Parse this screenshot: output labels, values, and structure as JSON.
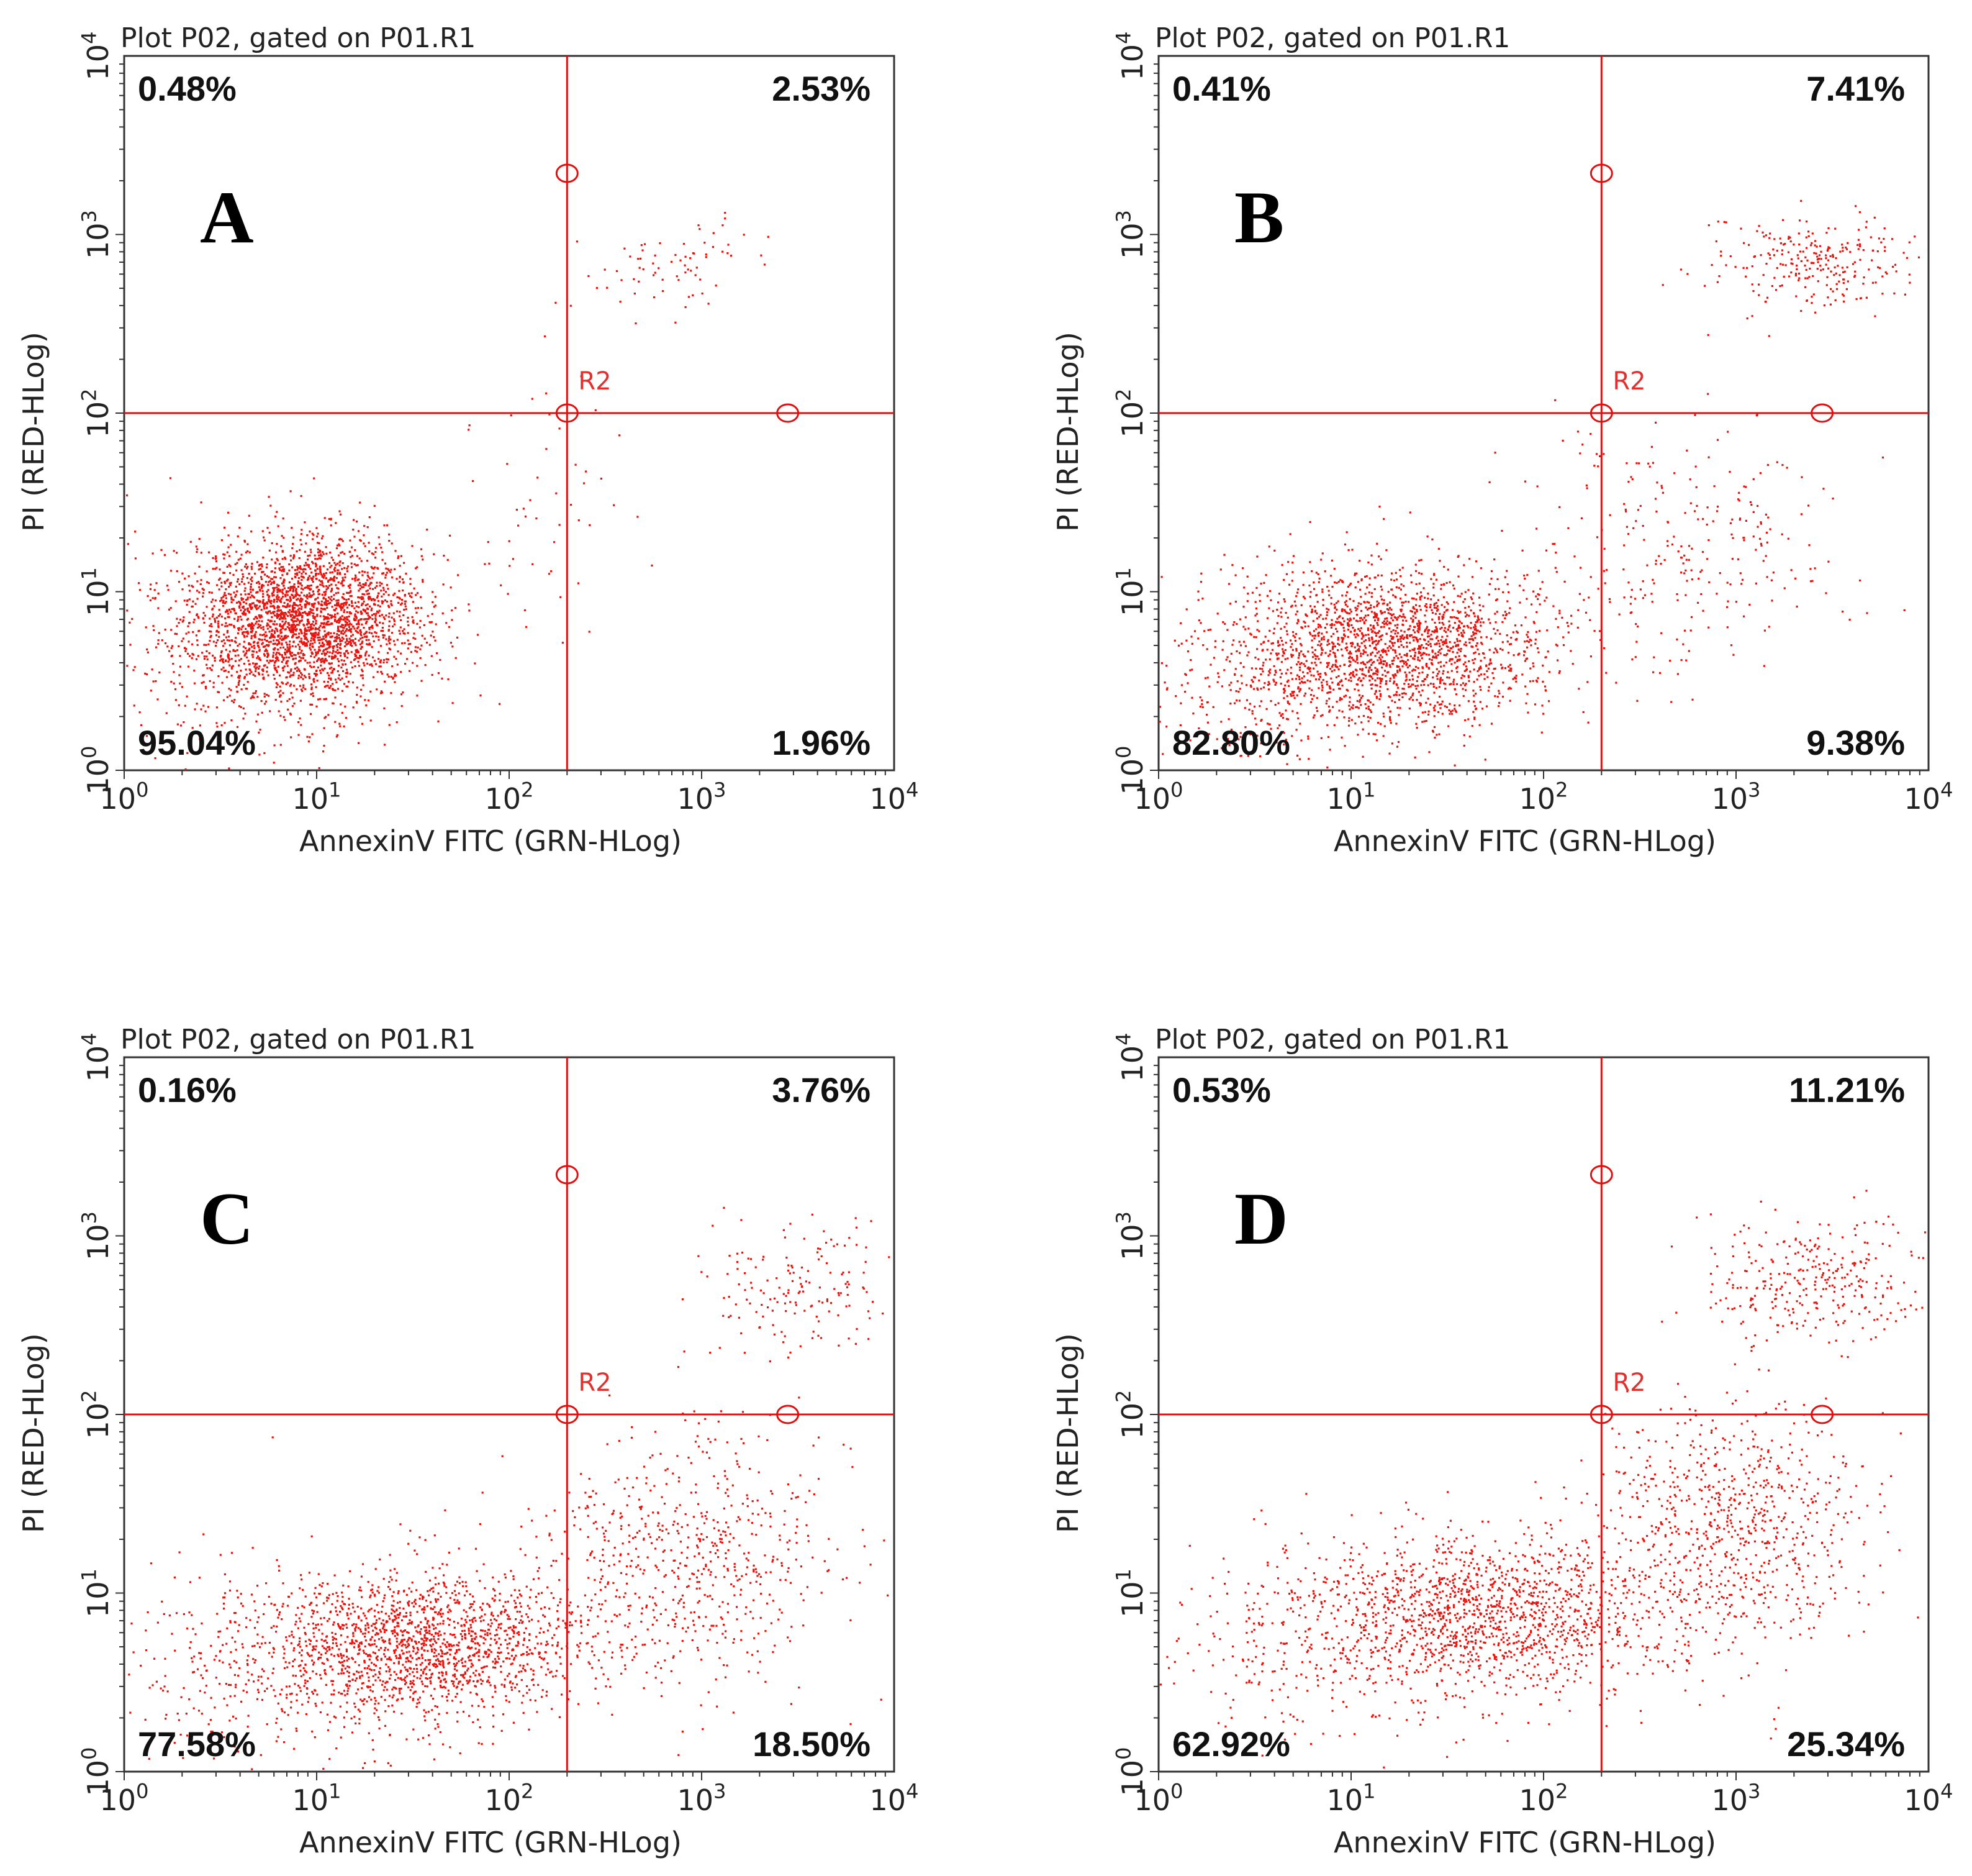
{
  "figure": {
    "colors": {
      "dots": "#e8140f",
      "gate": "#e01010",
      "frame": "#333333",
      "text": "#111111"
    }
  },
  "chart_data": [
    {
      "type": "scatter",
      "panel_letter": "A",
      "title": "Plot P02, gated on P01.R1",
      "xlabel": "AnnexinV FITC (GRN-HLog)",
      "ylabel": "PI (RED-HLog)",
      "xscale": "log",
      "yscale": "log",
      "xlim": [
        1,
        10000
      ],
      "ylim": [
        1,
        10000
      ],
      "x_ticks": [
        "10^0",
        "10^1",
        "10^2",
        "10^3",
        "10^4"
      ],
      "y_ticks": [
        "10^0",
        "10^1",
        "10^2",
        "10^3",
        "10^4"
      ],
      "gate": {
        "name": "R2",
        "x": 200,
        "y": 100,
        "handles": [
          [
            200,
            100
          ],
          [
            200,
            2200
          ],
          [
            2800,
            100
          ]
        ]
      },
      "quadrants": {
        "upper_left": "0.48%",
        "upper_right": "2.53%",
        "lower_left": "95.04%",
        "lower_right": "1.96%"
      },
      "clusters": [
        {
          "n": 2600,
          "x_log_mean": 0.95,
          "x_log_sd": 0.3,
          "y_log_mean": 0.85,
          "y_log_sd": 0.22
        },
        {
          "n": 350,
          "x_log_mean": 0.55,
          "x_log_sd": 0.4,
          "y_log_mean": 0.7,
          "y_log_sd": 0.35
        },
        {
          "n": 70,
          "x_log_mean": 2.85,
          "x_log_sd": 0.25,
          "y_log_mean": 2.85,
          "y_log_sd": 0.12
        },
        {
          "n": 55,
          "x_log_mean": 2.2,
          "x_log_sd": 0.25,
          "y_log_mean": 1.5,
          "y_log_sd": 0.55
        }
      ]
    },
    {
      "type": "scatter",
      "panel_letter": "B",
      "title": "Plot P02, gated on P01.R1",
      "xlabel": "AnnexinV FITC (GRN-HLog)",
      "ylabel": "PI (RED-HLog)",
      "xscale": "log",
      "yscale": "log",
      "xlim": [
        1,
        10000
      ],
      "ylim": [
        1,
        10000
      ],
      "x_ticks": [
        "10^0",
        "10^1",
        "10^2",
        "10^3",
        "10^4"
      ],
      "y_ticks": [
        "10^0",
        "10^1",
        "10^2",
        "10^3",
        "10^4"
      ],
      "gate": {
        "name": "R2",
        "x": 200,
        "y": 100,
        "handles": [
          [
            200,
            100
          ],
          [
            200,
            2200
          ],
          [
            2800,
            100
          ]
        ]
      },
      "quadrants": {
        "upper_left": "0.41%",
        "upper_right": "7.41%",
        "lower_left": "82.80%",
        "lower_right": "9.38%"
      },
      "clusters": [
        {
          "n": 1900,
          "x_log_mean": 1.2,
          "x_log_sd": 0.4,
          "y_log_mean": 0.7,
          "y_log_sd": 0.22
        },
        {
          "n": 300,
          "x_log_mean": 0.6,
          "x_log_sd": 0.4,
          "y_log_mean": 0.55,
          "y_log_sd": 0.3
        },
        {
          "n": 260,
          "x_log_mean": 3.4,
          "x_log_sd": 0.25,
          "y_log_mean": 2.85,
          "y_log_sd": 0.12
        },
        {
          "n": 280,
          "x_log_mean": 2.7,
          "x_log_sd": 0.4,
          "y_log_mean": 1.25,
          "y_log_sd": 0.4
        }
      ]
    },
    {
      "type": "scatter",
      "panel_letter": "C",
      "title": "Plot P02, gated on P01.R1",
      "xlabel": "AnnexinV FITC (GRN-HLog)",
      "ylabel": "PI (RED-HLog)",
      "xscale": "log",
      "yscale": "log",
      "xlim": [
        1,
        10000
      ],
      "ylim": [
        1,
        10000
      ],
      "x_ticks": [
        "10^0",
        "10^1",
        "10^2",
        "10^3",
        "10^4"
      ],
      "y_ticks": [
        "10^0",
        "10^1",
        "10^2",
        "10^3",
        "10^4"
      ],
      "gate": {
        "name": "R2",
        "x": 200,
        "y": 100,
        "handles": [
          [
            200,
            100
          ],
          [
            200,
            2200
          ],
          [
            2800,
            100
          ]
        ]
      },
      "quadrants": {
        "upper_left": "0.16%",
        "upper_right": "3.76%",
        "lower_left": "77.58%",
        "lower_right": "18.50%"
      },
      "clusters": [
        {
          "n": 1500,
          "x_log_mean": 1.55,
          "x_log_sd": 0.45,
          "y_log_mean": 0.72,
          "y_log_sd": 0.2
        },
        {
          "n": 500,
          "x_log_mean": 0.9,
          "x_log_sd": 0.55,
          "y_log_mean": 0.55,
          "y_log_sd": 0.3
        },
        {
          "n": 650,
          "x_log_mean": 2.9,
          "x_log_sd": 0.4,
          "y_log_mean": 1.2,
          "y_log_sd": 0.35
        },
        {
          "n": 170,
          "x_log_mean": 3.5,
          "x_log_sd": 0.3,
          "y_log_mean": 2.7,
          "y_log_sd": 0.22
        }
      ]
    },
    {
      "type": "scatter",
      "panel_letter": "D",
      "title": "Plot P02, gated on P01.R1",
      "xlabel": "AnnexinV FITC (GRN-HLog)",
      "ylabel": "PI (RED-HLog)",
      "xscale": "log",
      "yscale": "log",
      "xlim": [
        1,
        10000
      ],
      "ylim": [
        1,
        10000
      ],
      "x_ticks": [
        "10^0",
        "10^1",
        "10^2",
        "10^3",
        "10^4"
      ],
      "y_ticks": [
        "10^0",
        "10^1",
        "10^2",
        "10^3",
        "10^4"
      ],
      "gate": {
        "name": "R2",
        "x": 200,
        "y": 100,
        "handles": [
          [
            200,
            100
          ],
          [
            200,
            2200
          ],
          [
            2800,
            100
          ]
        ]
      },
      "quadrants": {
        "upper_left": "0.53%",
        "upper_right": "11.21%",
        "lower_left": "62.92%",
        "lower_right": "25.34%"
      },
      "clusters": [
        {
          "n": 1300,
          "x_log_mean": 1.7,
          "x_log_sd": 0.45,
          "y_log_mean": 0.9,
          "y_log_sd": 0.22
        },
        {
          "n": 400,
          "x_log_mean": 1.0,
          "x_log_sd": 0.55,
          "y_log_mean": 0.75,
          "y_log_sd": 0.28
        },
        {
          "n": 800,
          "x_log_mean": 2.95,
          "x_log_sd": 0.35,
          "y_log_mean": 1.35,
          "y_log_sd": 0.35
        },
        {
          "n": 320,
          "x_log_mean": 3.4,
          "x_log_sd": 0.3,
          "y_log_mean": 2.75,
          "y_log_sd": 0.18
        }
      ]
    }
  ]
}
